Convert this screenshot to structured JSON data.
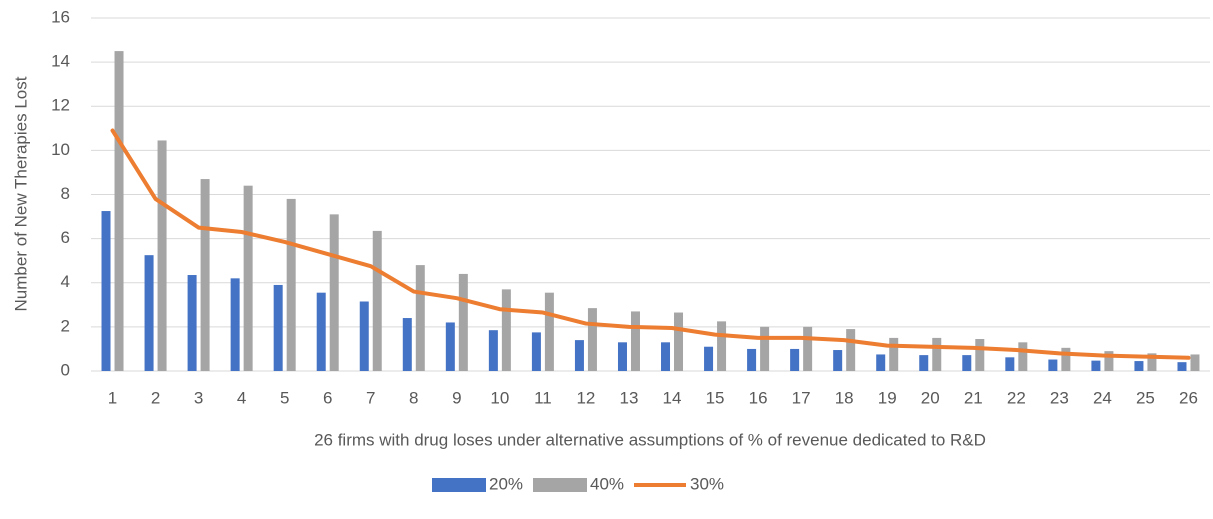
{
  "chart_data": {
    "type": "bar",
    "y_label": "Number of New Therapies Lost",
    "x_label": "26 firms with drug loses under alternative assumptions of % of revenue dedicated to R&D",
    "categories": [
      1,
      2,
      3,
      4,
      5,
      6,
      7,
      8,
      9,
      10,
      11,
      12,
      13,
      14,
      15,
      16,
      17,
      18,
      19,
      20,
      21,
      22,
      23,
      24,
      25,
      26
    ],
    "series": [
      {
        "name": "20%",
        "type": "bar",
        "color": "#4472c4",
        "values": [
          7.25,
          5.25,
          4.35,
          4.2,
          3.9,
          3.55,
          3.15,
          2.4,
          2.2,
          1.85,
          1.75,
          1.4,
          1.3,
          1.3,
          1.1,
          1.0,
          1.0,
          0.95,
          0.75,
          0.72,
          0.72,
          0.62,
          0.52,
          0.47,
          0.45,
          0.4
        ]
      },
      {
        "name": "40%",
        "type": "bar",
        "color": "#a5a5a5",
        "values": [
          14.5,
          10.45,
          8.7,
          8.4,
          7.8,
          7.1,
          6.35,
          4.8,
          4.4,
          3.7,
          3.55,
          2.85,
          2.7,
          2.65,
          2.25,
          2.0,
          2.0,
          1.9,
          1.5,
          1.5,
          1.45,
          1.3,
          1.05,
          0.9,
          0.8,
          0.75
        ]
      },
      {
        "name": "30%",
        "type": "line",
        "color": "#ed7d31",
        "values": [
          10.9,
          7.8,
          6.5,
          6.3,
          5.85,
          5.3,
          4.75,
          3.6,
          3.3,
          2.8,
          2.65,
          2.15,
          2.0,
          1.95,
          1.65,
          1.5,
          1.5,
          1.4,
          1.15,
          1.1,
          1.05,
          0.95,
          0.8,
          0.7,
          0.65,
          0.6
        ]
      }
    ],
    "ylim": [
      0,
      16
    ],
    "yticks": [
      0,
      2,
      4,
      6,
      8,
      10,
      12,
      14,
      16
    ],
    "grid": true,
    "legend": "bottom"
  }
}
